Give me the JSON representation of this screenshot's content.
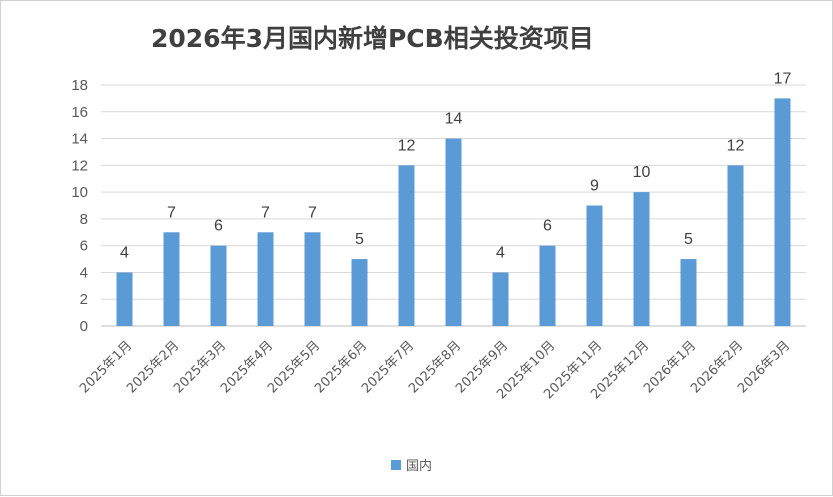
{
  "chart_data": {
    "type": "bar",
    "title": "2026年3月国内新增PCB相关投资项目",
    "categories": [
      "2025年1月",
      "2025年2月",
      "2025年3月",
      "2025年4月",
      "2025年5月",
      "2025年6月",
      "2025年7月",
      "2025年8月",
      "2025年9月",
      "2025年10月",
      "2025年11月",
      "2025年12月",
      "2026年1月",
      "2026年2月",
      "2026年3月"
    ],
    "series": [
      {
        "name": "国内",
        "values": [
          4,
          7,
          6,
          7,
          7,
          5,
          12,
          14,
          4,
          6,
          9,
          10,
          5,
          12,
          17
        ]
      }
    ],
    "yticks": [
      "0",
      "2",
      "4",
      "6",
      "8",
      "10",
      "12",
      "14",
      "16",
      "18"
    ],
    "ylim": [
      0,
      18
    ],
    "grid": true,
    "legend_position": "bottom",
    "colors": {
      "bar": "#5b9bd5",
      "grid": "#d9d9d9"
    }
  }
}
